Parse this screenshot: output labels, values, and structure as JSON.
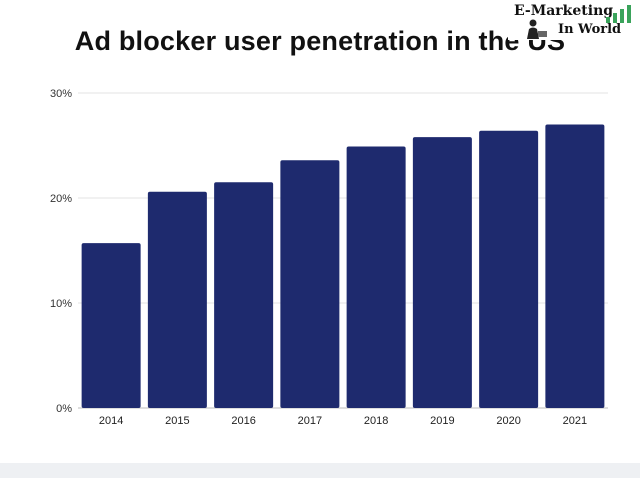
{
  "brand": {
    "logo_line1": "E-Marketing",
    "logo_line2": "In World",
    "logo_icon": "person-with-bar-chart-icon"
  },
  "chart_data": {
    "type": "bar",
    "title": "Ad blocker user penetration in the US",
    "xlabel": "",
    "ylabel": "",
    "categories": [
      "2014",
      "2015",
      "2016",
      "2017",
      "2018",
      "2019",
      "2020",
      "2021"
    ],
    "values": [
      15.7,
      20.6,
      21.5,
      23.6,
      24.9,
      25.8,
      26.4,
      27.0
    ],
    "ylim": [
      0,
      30
    ],
    "yticks": [
      0,
      10,
      20,
      30
    ],
    "ytick_labels": [
      "0%",
      "10%",
      "20%",
      "30%"
    ],
    "grid": true,
    "bar_color": "#1e2a6e",
    "grid_color": "#e3e3e3"
  }
}
